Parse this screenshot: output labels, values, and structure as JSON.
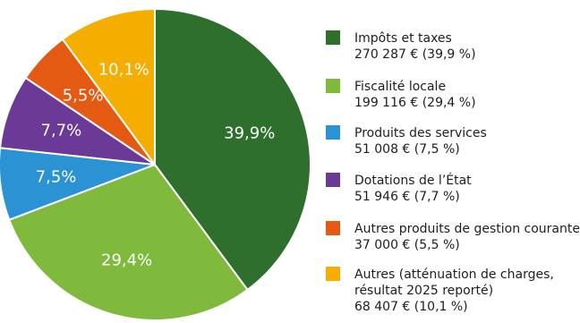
{
  "chart_data": {
    "type": "pie",
    "title": "",
    "slices": [
      {
        "label": "39,9%",
        "value": 39.9,
        "color": "#2e6f2e",
        "legend": [
          "Impôts et taxes",
          "270 287 € (39,9 %)"
        ]
      },
      {
        "label": "29,4%",
        "value": 29.4,
        "color": "#7fba3c",
        "legend": [
          "Fiscalité locale",
          "199 116 € (29,4 %)"
        ]
      },
      {
        "label": "7,5%",
        "value": 7.5,
        "color": "#2b92d4",
        "legend": [
          "Produits des services",
          "51 008 € (7,5 %)"
        ]
      },
      {
        "label": "7,7%",
        "value": 7.7,
        "color": "#6a3a96",
        "legend": [
          "Dotations de l’État",
          "51 946 € (7,7 %)"
        ]
      },
      {
        "label": "5,5%",
        "value": 5.5,
        "color": "#e55a12",
        "legend": [
          "Autres produits de gestion courante",
          "37 000 € (5,5 %)"
        ]
      },
      {
        "label": "10,1%",
        "value": 10.1,
        "color": "#f5ad00",
        "legend": [
          "Autres (atténuation de charges,",
          "résultat 2025 reporté)",
          "68 407 € (10,1 %)"
        ]
      }
    ],
    "legend_position": "right"
  }
}
